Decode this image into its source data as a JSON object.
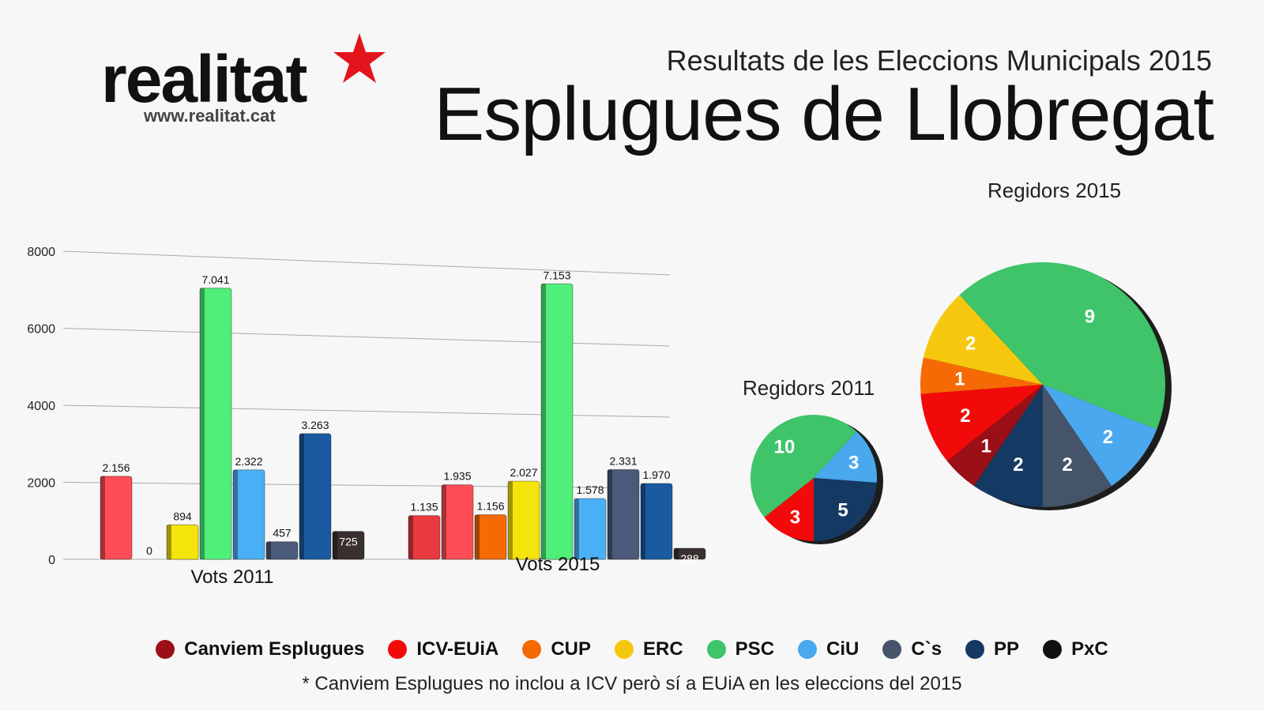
{
  "logo": {
    "word": "realitat",
    "url": "www.realitat.cat",
    "star_color": "#e3151c"
  },
  "header": {
    "subtitle": "Resultats de les Eleccions Municipals 2015",
    "title": "Esplugues de Llobregat"
  },
  "parties": [
    {
      "name": "Canviem Esplugues",
      "color": "#9b1016"
    },
    {
      "name": "ICV-EUiA",
      "color": "#f20a0a"
    },
    {
      "name": "CUP",
      "color": "#f56a05"
    },
    {
      "name": "ERC",
      "color": "#f5c80f"
    },
    {
      "name": "PSC",
      "color": "#3fc46a"
    },
    {
      "name": "CiU",
      "color": "#4aa8ee"
    },
    {
      "name": "C`s",
      "color": "#46546a"
    },
    {
      "name": "PP",
      "color": "#143a64"
    },
    {
      "name": "PxC",
      "color": "#111111"
    }
  ],
  "chart_data": [
    {
      "type": "bar",
      "ylim": [
        0,
        8000
      ],
      "yticks": [
        "0",
        "2000",
        "4000",
        "6000",
        "8000"
      ],
      "grid": true,
      "categories": [
        "Vots 2011",
        "Vots 2015"
      ],
      "series_bar_colors": [
        "#e83a3f",
        "#ff4d55",
        "#f56a05",
        "#f5e40a",
        "#4ef07a",
        "#4ab0f5",
        "#4a5a78",
        "#1a5aa0",
        "#3a3030"
      ],
      "series": [
        {
          "name": "Canviem Esplugues",
          "values": [
            null,
            1135
          ],
          "labels": [
            "",
            "1.135"
          ]
        },
        {
          "name": "ICV-EUiA",
          "values": [
            2156,
            1935
          ],
          "labels": [
            "2.156",
            "1.935"
          ]
        },
        {
          "name": "CUP",
          "values": [
            0,
            1156
          ],
          "labels": [
            "0",
            "1.156"
          ]
        },
        {
          "name": "ERC",
          "values": [
            894,
            2027
          ],
          "labels": [
            "894",
            "2.027"
          ]
        },
        {
          "name": "PSC",
          "values": [
            7041,
            7153
          ],
          "labels": [
            "7.041",
            "7.153"
          ]
        },
        {
          "name": "CiU",
          "values": [
            2322,
            1578
          ],
          "labels": [
            "2.322",
            "1.578"
          ]
        },
        {
          "name": "C`s",
          "values": [
            457,
            2331
          ],
          "labels": [
            "457",
            "2.331"
          ]
        },
        {
          "name": "PP",
          "values": [
            3263,
            1970
          ],
          "labels": [
            "3.263",
            "1.970"
          ]
        },
        {
          "name": "PxC",
          "values": [
            725,
            288
          ],
          "labels": [
            "725",
            "288"
          ]
        }
      ]
    },
    {
      "type": "pie",
      "title": "Regidors 2011",
      "slices": [
        {
          "name": "ICV-EUiA",
          "value": 3
        },
        {
          "name": "PSC",
          "value": 10
        },
        {
          "name": "CiU",
          "value": 3
        },
        {
          "name": "PP",
          "value": 5
        }
      ]
    },
    {
      "type": "pie",
      "title": "Regidors 2015",
      "slices": [
        {
          "name": "PP",
          "value": 2
        },
        {
          "name": "Canviem Esplugues",
          "value": 1
        },
        {
          "name": "ICV-EUiA",
          "value": 2
        },
        {
          "name": "CUP",
          "value": 1
        },
        {
          "name": "ERC",
          "value": 2
        },
        {
          "name": "PSC",
          "value": 9
        },
        {
          "name": "CiU",
          "value": 2
        },
        {
          "name": "C`s",
          "value": 2
        }
      ]
    }
  ],
  "footnote": "* Canviem Esplugues no inclou a ICV però sí a EUiA en les eleccions del 2015"
}
